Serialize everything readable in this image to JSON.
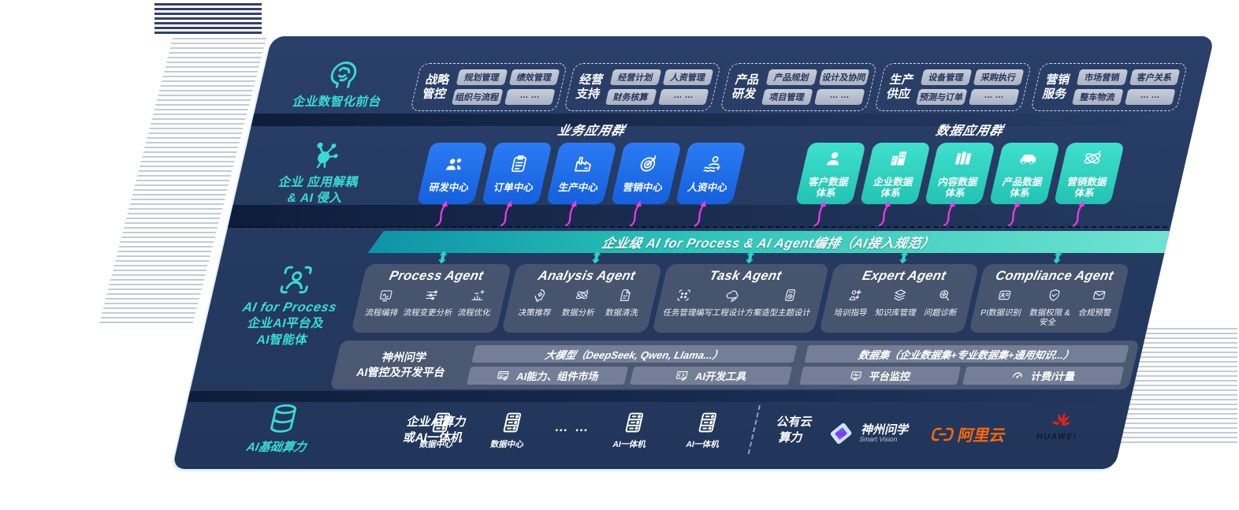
{
  "colors": {
    "panel_bg": "#253a61",
    "accent_teal": "#37dcd5",
    "card_blue": "#1c6ce8",
    "card_teal": "#30d4c3",
    "bus_teal_dark": "#0c93a6",
    "bus_teal_light": "#6fe3d0",
    "magenta": "#ef3be4",
    "agent_box": "#4a566f",
    "chip_bg": "#b8c0ce",
    "aliyun_orange": "#ff6a00",
    "huawei_red": "#e2231a"
  },
  "front_office": {
    "icon": "brain-icon",
    "label": "企业数智化前台",
    "modules": [
      {
        "name": "战略管控",
        "chips": [
          "规划管理",
          "绩效管理",
          "组织与流程",
          "… …"
        ]
      },
      {
        "name": "经营支持",
        "chips": [
          "经营计划",
          "人资管理",
          "财务核算",
          "… …"
        ]
      },
      {
        "name": "产品研发",
        "chips": [
          "产品规划",
          "设计及协同",
          "项目管理",
          "… …"
        ]
      },
      {
        "name": "生产供应",
        "chips": [
          "设备管理",
          "采购执行",
          "预测与订单",
          "… …"
        ]
      },
      {
        "name": "营销服务",
        "chips": [
          "市场营销",
          "客户关系",
          "整车物流",
          "… …"
        ]
      }
    ]
  },
  "decouple_layer": {
    "icon": "molecule-icon",
    "label_line1": "企业 应用解耦",
    "label_line2": "& AI 侵入",
    "business_group": {
      "title": "业务应用群",
      "cards": [
        {
          "label": "研发中心",
          "icon": "team-icon"
        },
        {
          "label": "订单中心",
          "icon": "clipboard-icon"
        },
        {
          "label": "生产中心",
          "icon": "factory-icon"
        },
        {
          "label": "营销中心",
          "icon": "target-icon"
        },
        {
          "label": "人资中心",
          "icon": "hr-icon"
        }
      ]
    },
    "data_group": {
      "title": "数据应用群",
      "cards": [
        {
          "line1": "客户数据",
          "line2": "体系",
          "icon": "user-icon"
        },
        {
          "line1": "企业数据",
          "line2": "体系",
          "icon": "building-icon"
        },
        {
          "line1": "内容数据",
          "line2": "体系",
          "icon": "content-icon"
        },
        {
          "line1": "产品数据",
          "line2": "体系",
          "icon": "car-icon"
        },
        {
          "line1": "营销数据",
          "line2": "体系",
          "icon": "atom-icon"
        }
      ]
    }
  },
  "ai_bus": {
    "label": "企业级 AI for Process & AI Agent编排（AI接入规范）"
  },
  "agent_layer": {
    "icon": "person-scan-icon",
    "rail_line1": "AI for Process",
    "rail_line2": "企业AI平台及",
    "rail_line3": "AI智能体",
    "agents": [
      {
        "title": "Process Agent",
        "items": [
          {
            "label": "流程编排",
            "icon": "workflow-icon"
          },
          {
            "label": "流程变更分析",
            "icon": "sliders-icon"
          },
          {
            "label": "流程优化",
            "icon": "optimize-icon"
          }
        ]
      },
      {
        "title": "Analysis Agent",
        "items": [
          {
            "label": "决策推荐",
            "icon": "decision-icon"
          },
          {
            "label": "数据分析",
            "icon": "atom-icon"
          },
          {
            "label": "数据清洗",
            "icon": "doc-icon"
          }
        ]
      },
      {
        "title": "Task Agent",
        "items": [
          {
            "label": "任务管理",
            "icon": "task-icon"
          },
          {
            "label": "编写工程设计方案",
            "icon": "cloud-pen-icon"
          },
          {
            "label": "造型主题设计",
            "icon": "design-icon"
          }
        ]
      },
      {
        "title": "Expert Agent",
        "items": [
          {
            "label": "培训指导",
            "icon": "training-icon"
          },
          {
            "label": "知识库管理",
            "icon": "layers-icon"
          },
          {
            "label": "问题诊断",
            "icon": "diagnose-icon"
          }
        ]
      },
      {
        "title": "Compliance Agent",
        "items": [
          {
            "label": "PI数据识别",
            "icon": "idcard-icon"
          },
          {
            "label": "数据权限 & 安全",
            "icon": "security-icon"
          },
          {
            "label": "合规预警",
            "icon": "alert-icon"
          }
        ]
      }
    ]
  },
  "platform": {
    "rail_line1": "神州问学",
    "rail_line2": "AI管控及开发平台",
    "model_bar": "大模型（DeepSeek, Qwen, Llama...）",
    "dataset_bar": "数据集（企业数据集+专业数据集+通用知识...）",
    "sub_bars": [
      {
        "label": "AI能力、组件市场",
        "icon": "app-market-icon"
      },
      {
        "label": "AI开发工具",
        "icon": "dev-tool-icon"
      },
      {
        "label": "平台监控",
        "icon": "monitor-icon"
      },
      {
        "label": "计费/计量",
        "icon": "gauge-icon"
      }
    ]
  },
  "infra": {
    "icon": "database-icon",
    "rail_label": "AI基础算力",
    "compute_line1": "企业AI算力",
    "compute_line2": "或AI一体机",
    "nodes": [
      {
        "label": "数据中心",
        "icon": "server-icon"
      },
      {
        "label": "数据中心",
        "icon": "server-icon"
      },
      {
        "label": "AI一体机",
        "icon": "server-icon"
      },
      {
        "label": "AI一体机",
        "icon": "server-icon"
      }
    ],
    "dots": "… …",
    "cloud_line1": "公有云",
    "cloud_line2": "算力",
    "partners": {
      "smartvision_name": "神州问学",
      "smartvision_sub": "Smart Vision",
      "aliyun_name": "阿里云",
      "huawei_name": "HUAWEI"
    }
  }
}
